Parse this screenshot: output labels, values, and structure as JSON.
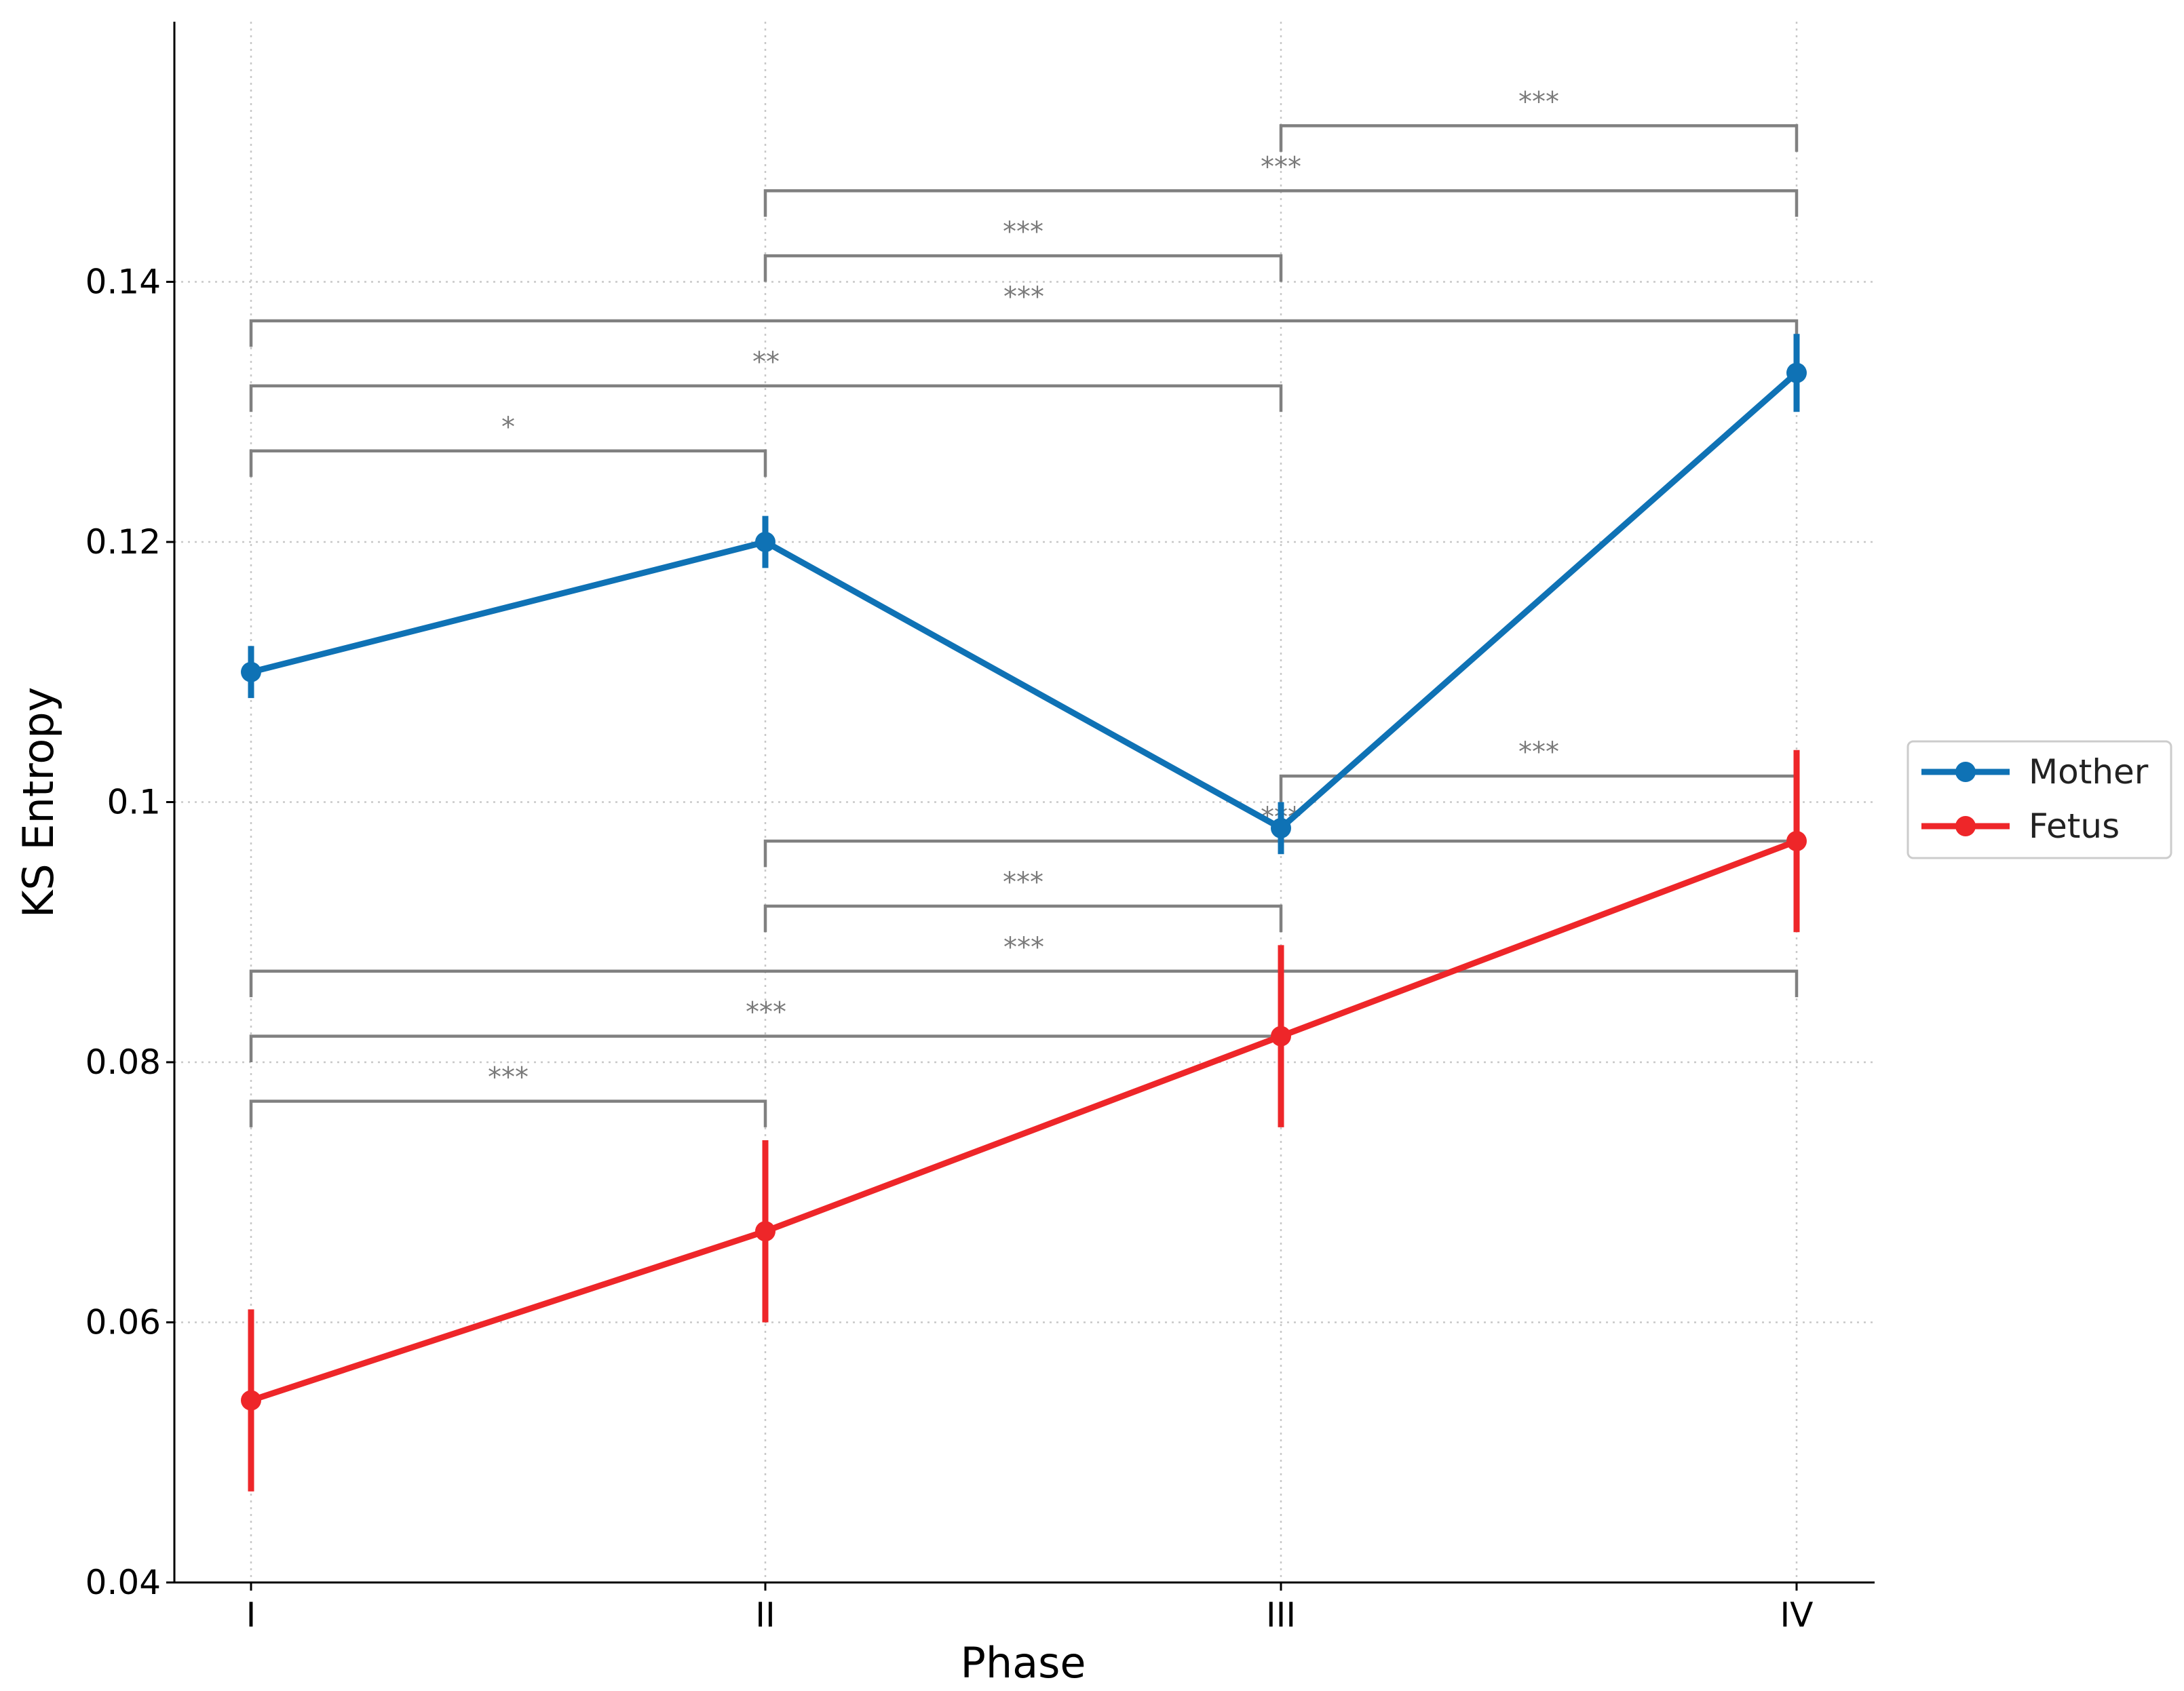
{
  "chart_data": {
    "type": "line",
    "xlabel": "Phase",
    "ylabel": "KS Entropy",
    "categories": [
      "I",
      "II",
      "III",
      "IV"
    ],
    "ylim": [
      0.04,
      0.16
    ],
    "yticks": [
      0.04,
      0.06,
      0.08,
      0.1,
      0.12,
      0.14
    ],
    "ytick_labels": [
      "0.04",
      "0.06",
      "0.08",
      "0.1",
      "0.12",
      "0.14"
    ],
    "grid": true,
    "legend_position": "right",
    "series": [
      {
        "name": "Mother",
        "color": "#0f72b5",
        "values": [
          0.11,
          0.12,
          0.098,
          0.133
        ],
        "errors": [
          0.002,
          0.002,
          0.002,
          0.003
        ]
      },
      {
        "name": "Fetus",
        "color": "#ee2629",
        "values": [
          0.054,
          0.067,
          0.082,
          0.097
        ],
        "errors": [
          0.007,
          0.007,
          0.007,
          0.007
        ]
      }
    ],
    "significance": [
      {
        "from": 2,
        "to": 3,
        "y": 0.152,
        "label": "***"
      },
      {
        "from": 1,
        "to": 3,
        "y": 0.147,
        "label": "***"
      },
      {
        "from": 1,
        "to": 2,
        "y": 0.142,
        "label": "***"
      },
      {
        "from": 0,
        "to": 3,
        "y": 0.137,
        "label": "***"
      },
      {
        "from": 0,
        "to": 2,
        "y": 0.132,
        "label": "**"
      },
      {
        "from": 0,
        "to": 1,
        "y": 0.127,
        "label": "*"
      },
      {
        "from": 2,
        "to": 3,
        "y": 0.102,
        "label": "***"
      },
      {
        "from": 1,
        "to": 3,
        "y": 0.097,
        "label": "***"
      },
      {
        "from": 1,
        "to": 2,
        "y": 0.092,
        "label": "***"
      },
      {
        "from": 0,
        "to": 3,
        "y": 0.087,
        "label": "***"
      },
      {
        "from": 0,
        "to": 2,
        "y": 0.082,
        "label": "***"
      },
      {
        "from": 0,
        "to": 1,
        "y": 0.077,
        "label": "***"
      }
    ],
    "significance_color": "#808080"
  }
}
